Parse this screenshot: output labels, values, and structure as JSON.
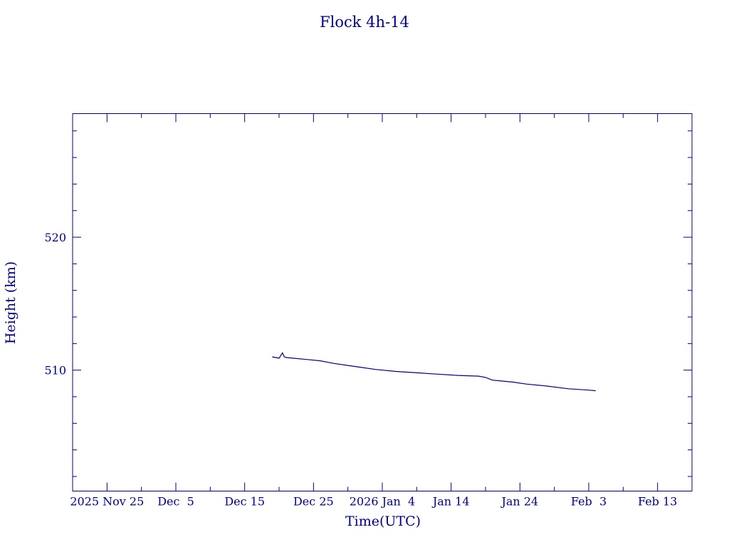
{
  "chart_data": {
    "type": "line",
    "title": "Flock 4h-14",
    "xlabel": "Time(UTC)",
    "ylabel": "Height (km)",
    "x_ticks": [
      {
        "date": "2025-11-25",
        "label": "2025 Nov 25"
      },
      {
        "date": "2025-12-05",
        "label": "Dec  5"
      },
      {
        "date": "2025-12-15",
        "label": "Dec 15"
      },
      {
        "date": "2025-12-25",
        "label": "Dec 25"
      },
      {
        "date": "2026-01-04",
        "label": "2026 Jan  4"
      },
      {
        "date": "2026-01-14",
        "label": "Jan 14"
      },
      {
        "date": "2026-01-24",
        "label": "Jan 24"
      },
      {
        "date": "2026-02-03",
        "label": "Feb  3"
      },
      {
        "date": "2026-02-13",
        "label": "Feb 13"
      }
    ],
    "y_ticks": [
      {
        "value": 510,
        "label": "510"
      },
      {
        "value": 520,
        "label": "520"
      }
    ],
    "xlim": [
      "2025-11-20",
      "2026-02-18"
    ],
    "ylim": [
      500.9,
      529.3
    ],
    "grid": false,
    "color": "#00008b",
    "series": [
      {
        "x": [
          "2025-12-19",
          "2025-12-20",
          "2025-12-20T12:00",
          "2025-12-20T18:00",
          "2025-12-21",
          "2025-12-22",
          "2025-12-24",
          "2025-12-26",
          "2025-12-28",
          "2025-12-30",
          "2026-01-01",
          "2026-01-03",
          "2026-01-06",
          "2026-01-09",
          "2026-01-12",
          "2026-01-15",
          "2026-01-18",
          "2026-01-19",
          "2026-01-20",
          "2026-01-21",
          "2026-01-23",
          "2026-01-25",
          "2026-01-28",
          "2026-01-31",
          "2026-02-03",
          "2026-02-04"
        ],
        "values": [
          511.0,
          510.9,
          511.3,
          511.0,
          510.95,
          510.9,
          510.8,
          510.7,
          510.5,
          510.35,
          510.2,
          510.05,
          509.9,
          509.8,
          509.7,
          509.6,
          509.55,
          509.45,
          509.25,
          509.2,
          509.1,
          508.95,
          508.8,
          508.6,
          508.5,
          508.45
        ]
      }
    ]
  }
}
